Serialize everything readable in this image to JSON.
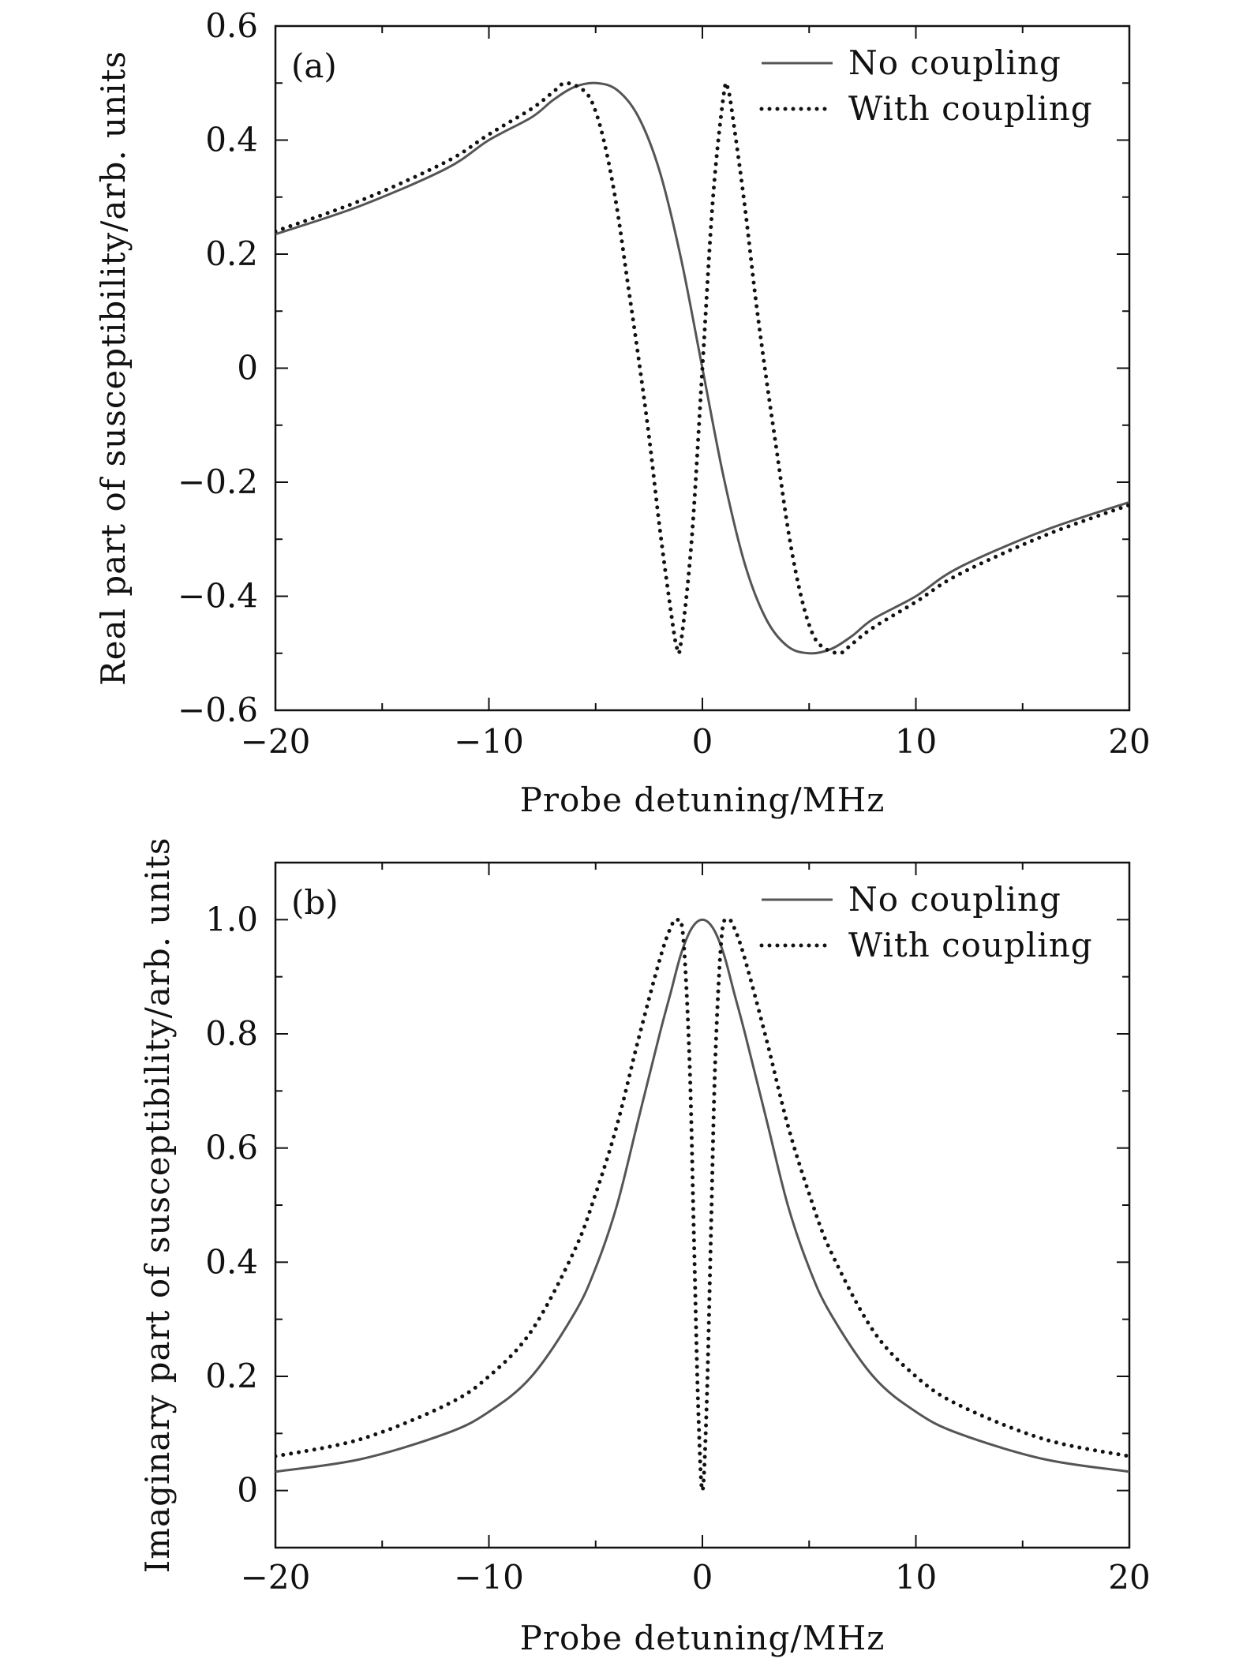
{
  "chart_data": [
    {
      "type": "line",
      "panel_label": "(a)",
      "xlabel": "Probe detuning/MHz",
      "ylabel": "Real part of susceptibility/arb. units",
      "xlim": [
        -20,
        20
      ],
      "ylim": [
        -0.6,
        0.6
      ],
      "x_ticks": [
        -20,
        -10,
        0,
        10,
        20
      ],
      "x_tick_labels": [
        "−20",
        "−10",
        "0",
        "10",
        "20"
      ],
      "y_ticks": [
        -0.6,
        -0.4,
        -0.2,
        0,
        0.2,
        0.4,
        0.6
      ],
      "y_tick_labels": [
        "−0.6",
        "−0.4",
        "−0.2",
        "0",
        "0.2",
        "0.4",
        "0.6"
      ],
      "grid": false,
      "legend": "top-right",
      "series": [
        {
          "name": "No coupling",
          "style": "solid",
          "color": "#555555",
          "x": [
            -20,
            -16,
            -12,
            -10,
            -8,
            -7,
            -6,
            -5,
            -4,
            -3,
            -2,
            -1,
            0,
            1,
            2,
            3,
            4,
            5,
            6,
            7,
            8,
            10,
            12,
            16,
            20
          ],
          "y": [
            0.235,
            0.285,
            0.35,
            0.4,
            0.44,
            0.47,
            0.493,
            0.5,
            0.488,
            0.441,
            0.345,
            0.192,
            0,
            -0.192,
            -0.345,
            -0.441,
            -0.488,
            -0.5,
            -0.493,
            -0.47,
            -0.44,
            -0.4,
            -0.35,
            -0.285,
            -0.235
          ]
        },
        {
          "name": "With coupling",
          "style": "dotted",
          "color": "#111111",
          "x": [
            -20,
            -16,
            -12,
            -10,
            -8,
            -7,
            -6.4,
            -5.5,
            -5,
            -4.5,
            -4,
            -3.5,
            -3,
            -2.5,
            -2,
            -1.5,
            -1.2,
            -1,
            -0.5,
            0,
            0.5,
            1,
            1.2,
            1.5,
            2,
            2.5,
            3,
            3.5,
            4,
            4.5,
            5,
            5.5,
            6.4,
            7,
            8,
            10,
            12,
            16,
            20
          ],
          "y": [
            0.24,
            0.294,
            0.362,
            0.41,
            0.455,
            0.484,
            0.5,
            0.485,
            0.45,
            0.38,
            0.28,
            0.15,
            0.02,
            -0.12,
            -0.28,
            -0.42,
            -0.49,
            -0.48,
            -0.3,
            0,
            0.3,
            0.48,
            0.49,
            0.42,
            0.28,
            0.12,
            -0.02,
            -0.15,
            -0.28,
            -0.38,
            -0.45,
            -0.485,
            -0.5,
            -0.484,
            -0.455,
            -0.41,
            -0.362,
            -0.294,
            -0.24
          ]
        }
      ]
    },
    {
      "type": "line",
      "panel_label": "(b)",
      "xlabel": "Probe detuning/MHz",
      "ylabel": "Imaginary part of susceptibility/arb. units",
      "xlim": [
        -20,
        20
      ],
      "ylim": [
        -0.1,
        1.1
      ],
      "x_ticks": [
        -20,
        -10,
        0,
        10,
        20
      ],
      "x_tick_labels": [
        "−20",
        "−10",
        "0",
        "10",
        "20"
      ],
      "y_ticks": [
        0,
        0.2,
        0.4,
        0.6,
        0.8,
        1.0
      ],
      "y_tick_labels": [
        "0",
        "0.2",
        "0.4",
        "0.6",
        "0.8",
        "1.0"
      ],
      "grid": false,
      "legend": "top-right",
      "series": [
        {
          "name": "No coupling",
          "style": "solid",
          "color": "#555555",
          "x": [
            -20,
            -16,
            -12,
            -10,
            -8,
            -6,
            -5,
            -4,
            -3,
            -2,
            -1.5,
            -1,
            -0.5,
            0,
            0.5,
            1,
            1.5,
            2,
            3,
            4,
            5,
            6,
            8,
            10,
            12,
            16,
            20
          ],
          "y": [
            0.033,
            0.055,
            0.1,
            0.138,
            0.2,
            0.31,
            0.39,
            0.5,
            0.65,
            0.8,
            0.87,
            0.94,
            0.985,
            1.0,
            0.985,
            0.94,
            0.87,
            0.8,
            0.65,
            0.5,
            0.39,
            0.31,
            0.2,
            0.138,
            0.1,
            0.055,
            0.033
          ]
        },
        {
          "name": "With coupling",
          "style": "dotted",
          "color": "#111111",
          "x": [
            -20,
            -16,
            -12,
            -10,
            -8,
            -6,
            -5,
            -4,
            -3,
            -2,
            -1.5,
            -1.2,
            -0.9,
            -0.6,
            -0.4,
            -0.2,
            0,
            0.2,
            0.4,
            0.6,
            0.9,
            1.2,
            1.5,
            2,
            3,
            4,
            5,
            6,
            8,
            10,
            12,
            16,
            20
          ],
          "y": [
            0.06,
            0.09,
            0.15,
            0.2,
            0.28,
            0.42,
            0.52,
            0.64,
            0.79,
            0.93,
            0.985,
            1.0,
            0.97,
            0.75,
            0.45,
            0.15,
            0.0,
            0.15,
            0.45,
            0.75,
            0.97,
            1.0,
            0.985,
            0.93,
            0.79,
            0.64,
            0.52,
            0.42,
            0.28,
            0.2,
            0.15,
            0.09,
            0.06
          ]
        }
      ]
    }
  ]
}
